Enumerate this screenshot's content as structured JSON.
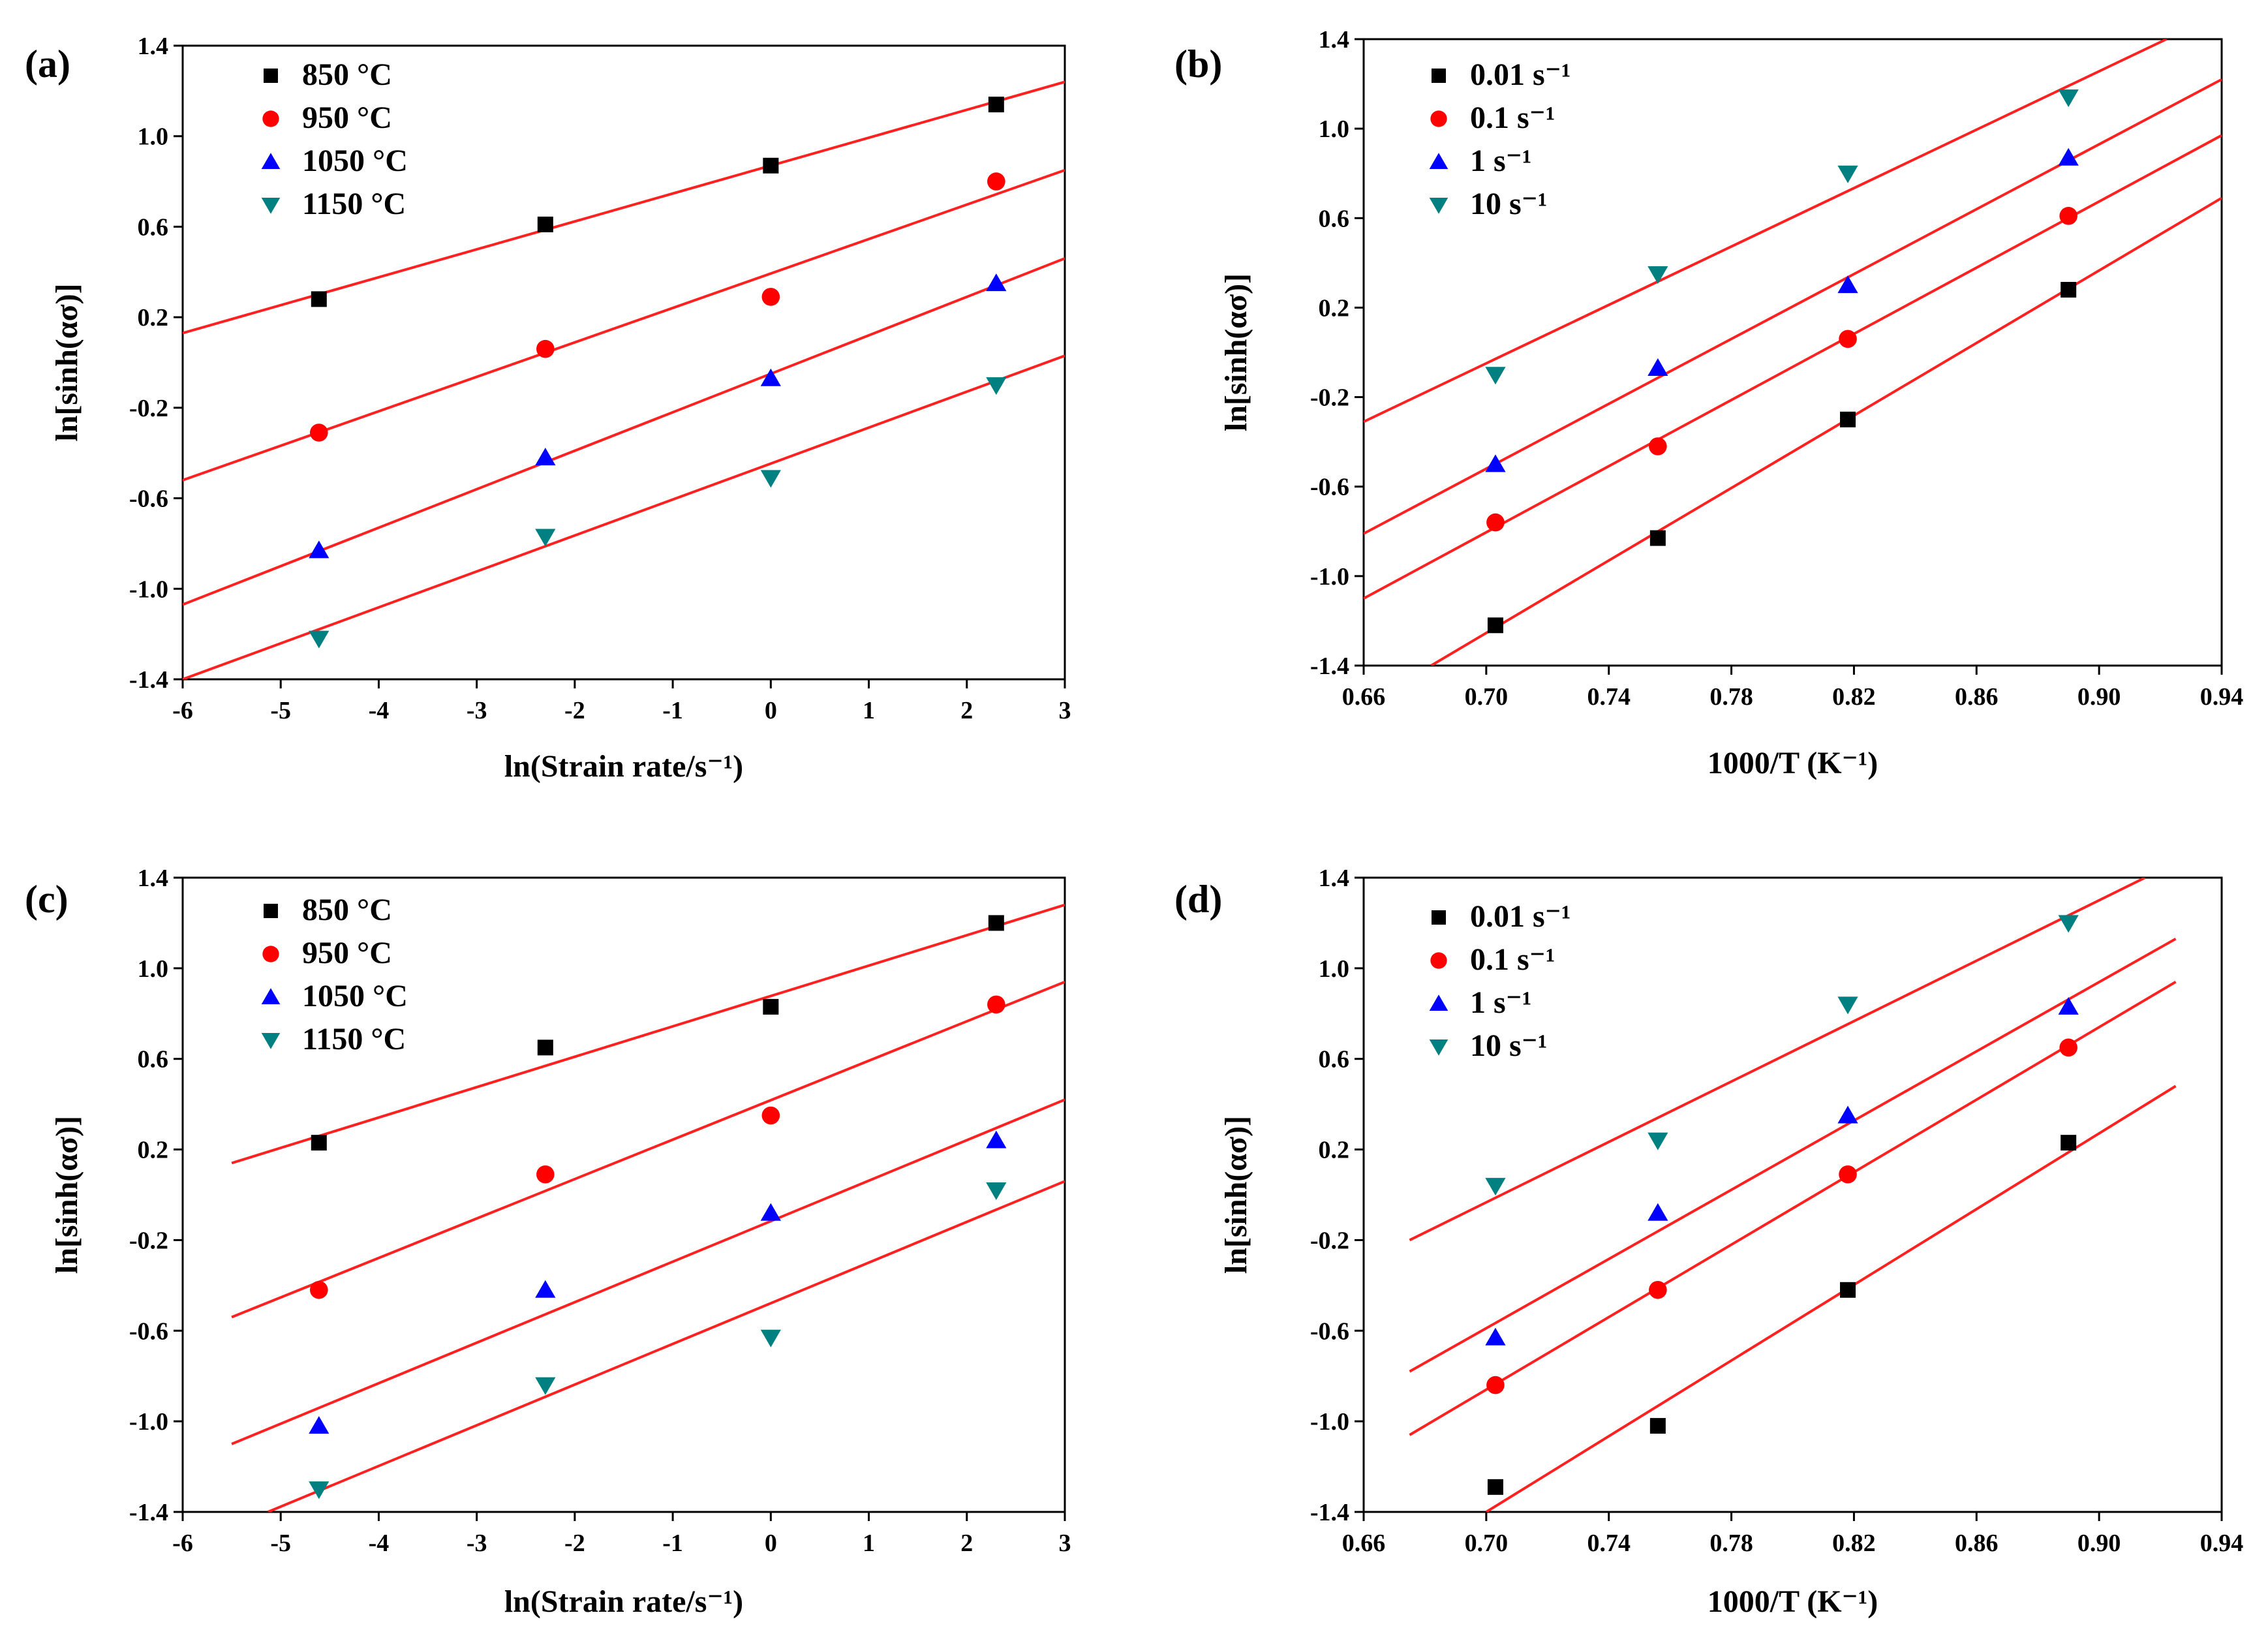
{
  "chart_data": [
    {
      "type": "scatter",
      "panel_label": "(a)",
      "xlabel": "ln(Strain rate/s⁻¹)",
      "ylabel": "ln[sinh(ασ)]",
      "xlim": [
        -6,
        3
      ],
      "ylim": [
        -1.4,
        1.4
      ],
      "xticks": [
        -6,
        -5,
        -4,
        -3,
        -2,
        -1,
        0,
        1,
        2,
        3
      ],
      "xtick_labels": [
        "-6",
        "-5",
        "-4",
        "-3",
        "-2",
        "-1",
        "0",
        "1",
        "2",
        "3"
      ],
      "yticks": [
        -1.4,
        -1.0,
        -0.6,
        -0.2,
        0.2,
        0.6,
        1.0,
        1.4
      ],
      "ytick_labels": [
        "-1.4",
        "-1.0",
        "-0.6",
        "-0.2",
        "0.2",
        "0.6",
        "1.0",
        "1.4"
      ],
      "legend_position": "top-left",
      "x": [
        -4.61,
        -2.3,
        0,
        2.3
      ],
      "series": [
        {
          "name": "850 °C",
          "marker": "square",
          "color": "#000000",
          "values": [
            0.28,
            0.61,
            0.87,
            1.14
          ],
          "fit_x": [
            -6,
            3
          ],
          "fit_y": [
            0.13,
            1.24
          ]
        },
        {
          "name": "950 °C",
          "marker": "circle",
          "color": "#ff0000",
          "values": [
            -0.31,
            0.06,
            0.29,
            0.8
          ],
          "fit_x": [
            -6,
            3
          ],
          "fit_y": [
            -0.52,
            0.85
          ]
        },
        {
          "name": "1050 °C",
          "marker": "triangle-up",
          "color": "#0000ff",
          "values": [
            -0.83,
            -0.42,
            -0.07,
            0.35
          ],
          "fit_x": [
            -6,
            3
          ],
          "fit_y": [
            -1.07,
            0.46
          ]
        },
        {
          "name": "1150 °C",
          "marker": "triangle-down",
          "color": "#008080",
          "values": [
            -1.22,
            -0.77,
            -0.51,
            -0.1
          ],
          "fit_x": [
            -6,
            3
          ],
          "fit_y": [
            -1.4,
            0.03
          ]
        }
      ]
    },
    {
      "type": "scatter",
      "panel_label": "(b)",
      "xlabel": "1000/T (K⁻¹)",
      "ylabel": "ln[sinh(ασ)]",
      "xlim": [
        0.66,
        0.94
      ],
      "ylim": [
        -1.4,
        1.4
      ],
      "xticks": [
        0.66,
        0.7,
        0.74,
        0.78,
        0.82,
        0.86,
        0.9,
        0.94
      ],
      "xtick_labels": [
        "0.66",
        "0.70",
        "0.74",
        "0.78",
        "0.82",
        "0.86",
        "0.90",
        "0.94"
      ],
      "yticks": [
        -1.4,
        -1.0,
        -0.6,
        -0.2,
        0.2,
        0.6,
        1.0,
        1.4
      ],
      "ytick_labels": [
        "-1.4",
        "-1.0",
        "-0.6",
        "-0.2",
        "0.2",
        "0.6",
        "1.0",
        "1.4"
      ],
      "legend_position": "top-left",
      "x": [
        0.703,
        0.756,
        0.818,
        0.89
      ],
      "series": [
        {
          "name": "0.01 s⁻¹",
          "marker": "square",
          "color": "#000000",
          "values": [
            -1.22,
            -0.83,
            -0.3,
            0.28
          ],
          "fit_x": [
            0.682,
            0.94
          ],
          "fit_y": [
            -1.4,
            0.69
          ]
        },
        {
          "name": "0.1 s⁻¹",
          "marker": "circle",
          "color": "#ff0000",
          "values": [
            -0.76,
            -0.42,
            0.06,
            0.61
          ],
          "fit_x": [
            0.66,
            0.94
          ],
          "fit_y": [
            -1.1,
            0.97
          ]
        },
        {
          "name": "1 s⁻¹",
          "marker": "triangle-up",
          "color": "#0000ff",
          "values": [
            -0.5,
            -0.07,
            0.3,
            0.87
          ],
          "fit_x": [
            0.66,
            0.94
          ],
          "fit_y": [
            -0.81,
            1.22
          ]
        },
        {
          "name": "10 s⁻¹",
          "marker": "triangle-down",
          "color": "#008080",
          "values": [
            -0.1,
            0.35,
            0.8,
            1.14
          ],
          "fit_x": [
            0.66,
            0.922
          ],
          "fit_y": [
            -0.31,
            1.4
          ]
        }
      ]
    },
    {
      "type": "scatter",
      "panel_label": "(c)",
      "xlabel": "ln(Strain rate/s⁻¹)",
      "ylabel": "ln[sinh(ασ)]",
      "xlim": [
        -6,
        3
      ],
      "ylim": [
        -1.4,
        1.4
      ],
      "xticks": [
        -6,
        -5,
        -4,
        -3,
        -2,
        -1,
        0,
        1,
        2,
        3
      ],
      "xtick_labels": [
        "-6",
        "-5",
        "-4",
        "-3",
        "-2",
        "-1",
        "0",
        "1",
        "2",
        "3"
      ],
      "yticks": [
        -1.4,
        -1.0,
        -0.6,
        -0.2,
        0.2,
        0.6,
        1.0,
        1.4
      ],
      "ytick_labels": [
        "-1.4",
        "-1.0",
        "-0.6",
        "-0.2",
        "0.2",
        "0.6",
        "1.0",
        "1.4"
      ],
      "legend_position": "top-left",
      "x": [
        -4.61,
        -2.3,
        0,
        2.3
      ],
      "series": [
        {
          "name": "850 °C",
          "marker": "square",
          "color": "#000000",
          "values": [
            0.23,
            0.65,
            0.83,
            1.2
          ],
          "fit_x": [
            -5.5,
            3
          ],
          "fit_y": [
            0.14,
            1.28
          ]
        },
        {
          "name": "950 °C",
          "marker": "circle",
          "color": "#ff0000",
          "values": [
            -0.42,
            0.09,
            0.35,
            0.84
          ],
          "fit_x": [
            -5.5,
            3
          ],
          "fit_y": [
            -0.54,
            0.94
          ]
        },
        {
          "name": "1050 °C",
          "marker": "triangle-up",
          "color": "#0000ff",
          "values": [
            -1.02,
            -0.42,
            -0.08,
            0.24
          ],
          "fit_x": [
            -5.5,
            3
          ],
          "fit_y": [
            -1.1,
            0.42
          ]
        },
        {
          "name": "1150 °C",
          "marker": "triangle-down",
          "color": "#008080",
          "values": [
            -1.3,
            -0.84,
            -0.63,
            0.02
          ],
          "fit_x": [
            -5.13,
            3
          ],
          "fit_y": [
            -1.4,
            0.06
          ]
        }
      ]
    },
    {
      "type": "scatter",
      "panel_label": "(d)",
      "xlabel": "1000/T (K⁻¹)",
      "ylabel": "ln[sinh(ασ)]",
      "xlim": [
        0.66,
        0.94
      ],
      "ylim": [
        -1.4,
        1.4
      ],
      "xticks": [
        0.66,
        0.7,
        0.74,
        0.78,
        0.82,
        0.86,
        0.9,
        0.94
      ],
      "xtick_labels": [
        "0.66",
        "0.70",
        "0.74",
        "0.78",
        "0.82",
        "0.86",
        "0.90",
        "0.94"
      ],
      "yticks": [
        -1.4,
        -1.0,
        -0.6,
        -0.2,
        0.2,
        0.6,
        1.0,
        1.4
      ],
      "ytick_labels": [
        "-1.4",
        "-1.0",
        "-0.6",
        "-0.2",
        "0.2",
        "0.6",
        "1.0",
        "1.4"
      ],
      "legend_position": "top-left",
      "x": [
        0.703,
        0.756,
        0.818,
        0.89
      ],
      "series": [
        {
          "name": "0.01 s⁻¹",
          "marker": "square",
          "color": "#000000",
          "values": [
            -1.29,
            -1.02,
            -0.42,
            0.23
          ],
          "fit_x": [
            0.7,
            0.925
          ],
          "fit_y": [
            -1.4,
            0.48
          ]
        },
        {
          "name": "0.1 s⁻¹",
          "marker": "circle",
          "color": "#ff0000",
          "values": [
            -0.84,
            -0.42,
            0.09,
            0.65
          ],
          "fit_x": [
            0.675,
            0.925
          ],
          "fit_y": [
            -1.06,
            0.94
          ]
        },
        {
          "name": "1 s⁻¹",
          "marker": "triangle-up",
          "color": "#0000ff",
          "values": [
            -0.63,
            -0.08,
            0.35,
            0.83
          ],
          "fit_x": [
            0.675,
            0.925
          ],
          "fit_y": [
            -0.78,
            1.13
          ]
        },
        {
          "name": "10 s⁻¹",
          "marker": "triangle-down",
          "color": "#008080",
          "values": [
            0.04,
            0.24,
            0.84,
            1.2
          ],
          "fit_x": [
            0.675,
            0.915
          ],
          "fit_y": [
            -0.2,
            1.4
          ]
        }
      ]
    }
  ],
  "fit_line_color": "#ff2020"
}
